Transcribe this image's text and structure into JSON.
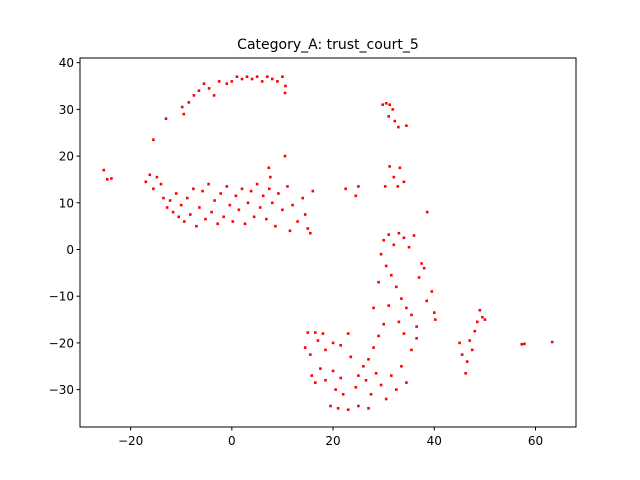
{
  "chart_data": {
    "type": "scatter",
    "title": "Category_A: trust_court_5",
    "xlabel": "",
    "ylabel": "",
    "xlim": [
      -30,
      68
    ],
    "ylim": [
      -38,
      41
    ],
    "xticks": [
      -20,
      0,
      20,
      40,
      60
    ],
    "yticks": [
      -30,
      -20,
      -10,
      0,
      10,
      20,
      30,
      40
    ],
    "xtick_labels": [
      "−20",
      "0",
      "20",
      "40",
      "60"
    ],
    "ytick_labels": [
      "−30",
      "−20",
      "−10",
      "0",
      "10",
      "20",
      "30",
      "40"
    ],
    "grid": false,
    "legend": "none",
    "marker_color": "#ff0000",
    "marker": "square",
    "series": [
      {
        "values": [
          [
            -25.3,
            17.0
          ],
          [
            -24.6,
            15.0
          ],
          [
            -23.8,
            15.2
          ],
          [
            -17.0,
            14.5
          ],
          [
            -16.2,
            16.0
          ],
          [
            -15.5,
            13.0
          ],
          [
            -14.8,
            15.5
          ],
          [
            -14.0,
            14.0
          ],
          [
            -13.5,
            11.0
          ],
          [
            -12.8,
            9.0
          ],
          [
            -12.2,
            10.5
          ],
          [
            -11.6,
            8.0
          ],
          [
            -11.0,
            12.0
          ],
          [
            -10.5,
            7.0
          ],
          [
            -10.0,
            9.5
          ],
          [
            -9.4,
            6.0
          ],
          [
            -8.8,
            11.0
          ],
          [
            -8.2,
            7.5
          ],
          [
            -7.6,
            13.0
          ],
          [
            -7.0,
            5.0
          ],
          [
            -6.4,
            9.0
          ],
          [
            -5.8,
            12.5
          ],
          [
            -5.2,
            6.5
          ],
          [
            -4.6,
            14.0
          ],
          [
            -4.0,
            8.0
          ],
          [
            -3.4,
            10.5
          ],
          [
            -2.8,
            5.5
          ],
          [
            -2.2,
            12.0
          ],
          [
            -1.6,
            7.0
          ],
          [
            -1.0,
            13.5
          ],
          [
            -0.4,
            9.5
          ],
          [
            0.2,
            6.0
          ],
          [
            0.8,
            11.5
          ],
          [
            1.4,
            8.5
          ],
          [
            2.0,
            13.0
          ],
          [
            2.6,
            5.5
          ],
          [
            3.2,
            10.0
          ],
          [
            3.8,
            12.5
          ],
          [
            4.4,
            7.0
          ],
          [
            5.0,
            14.0
          ],
          [
            5.6,
            9.0
          ],
          [
            6.2,
            11.5
          ],
          [
            6.8,
            6.5
          ],
          [
            7.4,
            13.0
          ],
          [
            8.0,
            10.0
          ],
          [
            8.6,
            5.0
          ],
          [
            9.2,
            12.0
          ],
          [
            10.0,
            8.5
          ],
          [
            11.0,
            13.5
          ],
          [
            12.0,
            9.5
          ],
          [
            13.0,
            6.0
          ],
          [
            14.0,
            11.0
          ],
          [
            15.0,
            4.5
          ],
          [
            16.0,
            12.5
          ],
          [
            11.5,
            4.0
          ],
          [
            15.5,
            3.5
          ],
          [
            14.5,
            7.5
          ],
          [
            10.5,
            20.0
          ],
          [
            7.3,
            17.5
          ],
          [
            7.6,
            15.5
          ],
          [
            -15.5,
            23.5
          ],
          [
            -13.0,
            28.0
          ],
          [
            -9.5,
            29.0
          ],
          [
            -9.8,
            30.5
          ],
          [
            -8.5,
            31.5
          ],
          [
            -7.5,
            33.0
          ],
          [
            -6.5,
            34.0
          ],
          [
            -5.5,
            35.5
          ],
          [
            -4.5,
            34.5
          ],
          [
            -3.5,
            33.0
          ],
          [
            -2.5,
            36.0
          ],
          [
            -1.0,
            35.5
          ],
          [
            0.0,
            36.0
          ],
          [
            1.0,
            37.0
          ],
          [
            2.0,
            36.5
          ],
          [
            3.0,
            37.0
          ],
          [
            4.0,
            36.5
          ],
          [
            5.0,
            37.0
          ],
          [
            6.0,
            36.0
          ],
          [
            7.0,
            37.0
          ],
          [
            8.0,
            36.5
          ],
          [
            9.0,
            36.0
          ],
          [
            10.0,
            37.0
          ],
          [
            10.6,
            35.0
          ],
          [
            10.5,
            33.5
          ],
          [
            29.8,
            31.0
          ],
          [
            30.5,
            31.3
          ],
          [
            31.2,
            31.0
          ],
          [
            31.8,
            30.0
          ],
          [
            31.0,
            28.5
          ],
          [
            32.2,
            27.5
          ],
          [
            32.9,
            26.2
          ],
          [
            34.5,
            26.5
          ],
          [
            31.2,
            17.8
          ],
          [
            33.2,
            17.5
          ],
          [
            32.0,
            15.5
          ],
          [
            32.8,
            13.5
          ],
          [
            34.0,
            14.5
          ],
          [
            30.3,
            13.5
          ],
          [
            25.0,
            13.5
          ],
          [
            22.5,
            13.0
          ],
          [
            24.5,
            11.5
          ],
          [
            38.6,
            8.0
          ],
          [
            30.0,
            2.0
          ],
          [
            31.0,
            3.2
          ],
          [
            32.0,
            1.0
          ],
          [
            33.0,
            3.5
          ],
          [
            34.0,
            2.5
          ],
          [
            35.0,
            0.5
          ],
          [
            36.0,
            3.0
          ],
          [
            29.5,
            -1.0
          ],
          [
            30.5,
            -3.5
          ],
          [
            31.5,
            -5.5
          ],
          [
            32.5,
            -8.0
          ],
          [
            33.5,
            -10.5
          ],
          [
            34.5,
            -12.5
          ],
          [
            35.5,
            -14.0
          ],
          [
            36.5,
            -16.5
          ],
          [
            37.0,
            -6.0
          ],
          [
            38.0,
            -4.0
          ],
          [
            39.5,
            -9.0
          ],
          [
            40.0,
            -13.5
          ],
          [
            40.2,
            -15.0
          ],
          [
            38.5,
            -11.0
          ],
          [
            37.5,
            -3.0
          ],
          [
            34.0,
            -18.0
          ],
          [
            33.0,
            -15.5
          ],
          [
            31.0,
            -12.0
          ],
          [
            29.0,
            -7.0
          ],
          [
            28.0,
            -12.5
          ],
          [
            30.0,
            -16.0
          ],
          [
            29.0,
            -18.5
          ],
          [
            28.0,
            -21.0
          ],
          [
            27.0,
            -23.5
          ],
          [
            26.0,
            -25.0
          ],
          [
            25.0,
            -27.0
          ],
          [
            24.5,
            -29.5
          ],
          [
            26.5,
            -28.0
          ],
          [
            27.5,
            -31.0
          ],
          [
            28.5,
            -26.5
          ],
          [
            29.5,
            -29.0
          ],
          [
            30.5,
            -32.0
          ],
          [
            31.5,
            -27.0
          ],
          [
            32.5,
            -30.0
          ],
          [
            33.5,
            -25.0
          ],
          [
            34.5,
            -28.5
          ],
          [
            35.5,
            -21.5
          ],
          [
            36.5,
            -19.0
          ],
          [
            23.5,
            -23.0
          ],
          [
            22.0,
            -31.0
          ],
          [
            20.5,
            -30.0
          ],
          [
            21.5,
            -27.5
          ],
          [
            19.5,
            -33.5
          ],
          [
            21.0,
            -34.0
          ],
          [
            23.0,
            -34.3
          ],
          [
            25.0,
            -33.5
          ],
          [
            27.0,
            -34.0
          ],
          [
            15.0,
            -17.8
          ],
          [
            16.5,
            -17.8
          ],
          [
            18.0,
            -18.0
          ],
          [
            14.5,
            -21.0
          ],
          [
            15.5,
            -22.5
          ],
          [
            17.0,
            -19.5
          ],
          [
            18.5,
            -21.5
          ],
          [
            20.0,
            -20.0
          ],
          [
            21.5,
            -20.5
          ],
          [
            23.0,
            -18.0
          ],
          [
            16.5,
            -28.5
          ],
          [
            18.5,
            -28.0
          ],
          [
            20.0,
            -26.0
          ],
          [
            17.5,
            -25.5
          ],
          [
            15.8,
            -27.0
          ],
          [
            45.5,
            -22.5
          ],
          [
            46.5,
            -24.0
          ],
          [
            47.0,
            -19.5
          ],
          [
            47.5,
            -21.5
          ],
          [
            48.0,
            -17.5
          ],
          [
            48.5,
            -15.5
          ],
          [
            49.0,
            -13.0
          ],
          [
            49.5,
            -14.5
          ],
          [
            50.0,
            -15.0
          ],
          [
            46.2,
            -26.5
          ],
          [
            45.0,
            -20.0
          ],
          [
            57.3,
            -20.3
          ],
          [
            57.8,
            -20.2
          ],
          [
            63.3,
            -19.8
          ]
        ]
      }
    ]
  }
}
